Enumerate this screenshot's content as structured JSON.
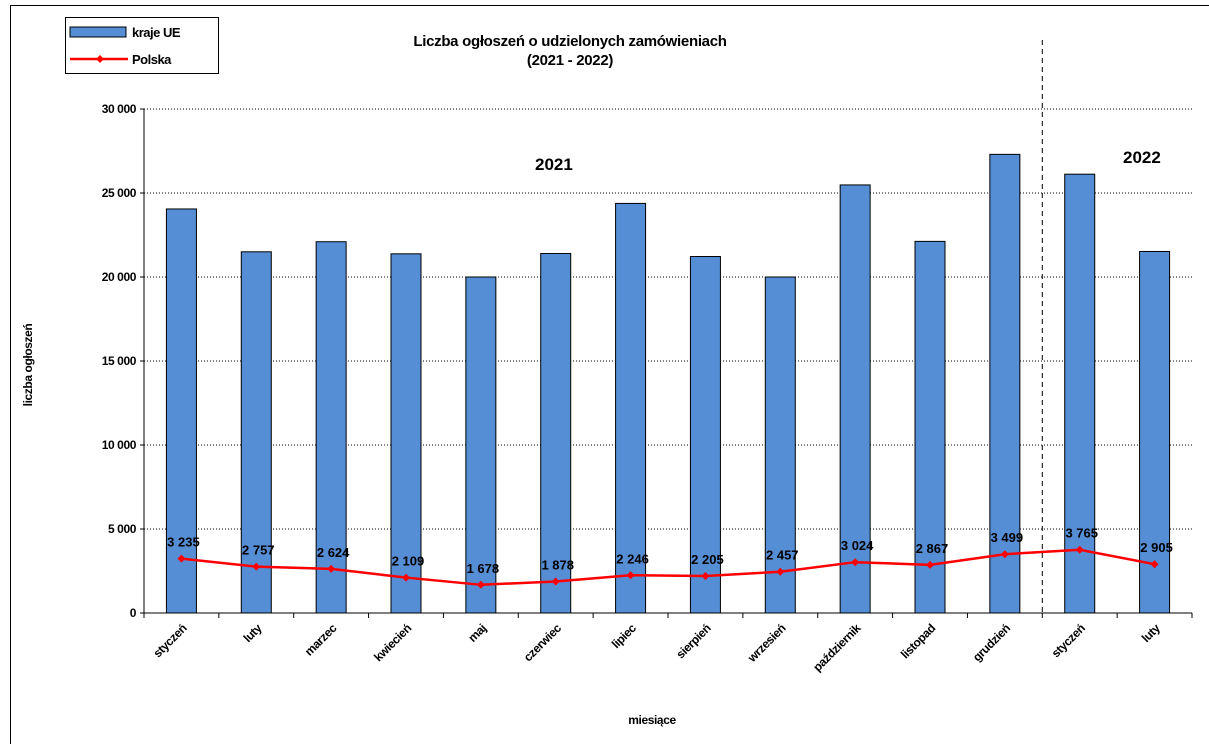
{
  "title_line1": "Liczba ogłoszeń o udzielonych zamówieniach",
  "title_line2": "(2021 - 2022)",
  "ylabel": "liczba ogłoszeń",
  "xlabel": "miesiące",
  "year_2021": "2021",
  "year_2022": "2022",
  "legend": {
    "series1": "kraje UE",
    "series2": "Polska"
  },
  "colors": {
    "bar": "#558ed5",
    "line": "#ff0000",
    "grid": "#000000"
  },
  "chart_data": {
    "type": "bar",
    "title": "Liczba ogłoszeń o udzielonych zamówieniach (2021 - 2022)",
    "xlabel": "miesiące",
    "ylabel": "liczba ogłoszeń",
    "ylim": [
      0,
      30000
    ],
    "yticks": [
      "0",
      "5 000",
      "10 000",
      "15 000",
      "20 000",
      "25 000",
      "30 000"
    ],
    "yticks_values": [
      0,
      5000,
      10000,
      15000,
      20000,
      25000,
      30000
    ],
    "grid": true,
    "legend_position": "top-left",
    "categories": [
      "styczeń",
      "luty",
      "marzec",
      "kwiecień",
      "maj",
      "czerwiec",
      "lipiec",
      "sierpień",
      "wrzesień",
      "październik",
      "listopad",
      "grudzień",
      "styczeń",
      "luty"
    ],
    "series": [
      {
        "name": "kraje UE",
        "type": "bar",
        "values": [
          24050,
          21500,
          22100,
          21380,
          20000,
          21400,
          24380,
          21220,
          20000,
          25480,
          22120,
          27300,
          26120,
          21520
        ]
      },
      {
        "name": "Polska",
        "type": "line",
        "values": [
          3235,
          2757,
          2624,
          2109,
          1678,
          1878,
          2246,
          2205,
          2457,
          3024,
          2867,
          3499,
          3765,
          2905
        ],
        "labels": [
          "3 235",
          "2 757",
          "2 624",
          "2 109",
          "1 678",
          "1 878",
          "2 246",
          "2 205",
          "2 457",
          "3 024",
          "2 867",
          "3 499",
          "3 765",
          "2 905"
        ]
      }
    ]
  }
}
